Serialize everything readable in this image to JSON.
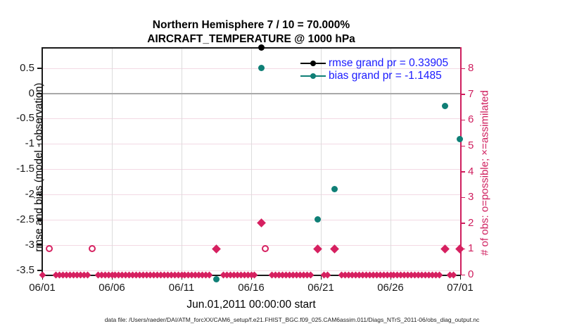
{
  "colors": {
    "count_axis": "#cf1e5e",
    "marker_pink": "#d62060",
    "bias_teal": "#0f7f76",
    "rmse_black": "#000000",
    "legend_text_blue": "#1a1aff",
    "grid_pink": "#f3d9e4",
    "grid_gray": "#dcdcdc",
    "zero_line_gray": "#a9a9a9"
  },
  "chart_data": {
    "type": "scatter",
    "title_line1": "Northern Hemisphere 7 / 10 = 70.000%",
    "title_line2": "AIRCRAFT_TEMPERATURE @ 1000 hPa",
    "x_axis": {
      "label": "Jun.01,2011 00:00:00 start",
      "ticks": [
        {
          "day": 0,
          "label": "06/01"
        },
        {
          "day": 5,
          "label": "06/06"
        },
        {
          "day": 10,
          "label": "06/11"
        },
        {
          "day": 15,
          "label": "06/16"
        },
        {
          "day": 20,
          "label": "06/21"
        },
        {
          "day": 25,
          "label": "06/26"
        },
        {
          "day": 30,
          "label": "07/01"
        }
      ],
      "xlim_days": [
        0,
        30
      ]
    },
    "y_left": {
      "label": "rmse and bias (model - observation)",
      "ticks": [
        {
          "v": 0.5,
          "label": "0.5"
        },
        {
          "v": 0,
          "label": "0"
        },
        {
          "v": -0.5,
          "label": "-0.5"
        },
        {
          "v": -1,
          "label": "-1"
        },
        {
          "v": -1.5,
          "label": "-1.5"
        },
        {
          "v": -2,
          "label": "-2"
        },
        {
          "v": -2.5,
          "label": "-2.5"
        },
        {
          "v": -3,
          "label": "-3"
        },
        {
          "v": -3.5,
          "label": "-3.5"
        }
      ],
      "ylim": [
        -3.59,
        0.9
      ]
    },
    "y_right": {
      "label": "# of obs: o=possible; ×=assimilated",
      "ticks": [
        {
          "c": 0,
          "label": "0"
        },
        {
          "c": 1,
          "label": "1"
        },
        {
          "c": 2,
          "label": "2"
        },
        {
          "c": 3,
          "label": "3"
        },
        {
          "c": 4,
          "label": "4"
        },
        {
          "c": 5,
          "label": "5"
        },
        {
          "c": 6,
          "label": "6"
        },
        {
          "c": 7,
          "label": "7"
        },
        {
          "c": 8,
          "label": "8"
        }
      ],
      "ylim": [
        0,
        8.8
      ]
    },
    "legend": {
      "items": [
        {
          "label": "rmse grand pr = 0.33905",
          "series": "rmse",
          "color": "#000000"
        },
        {
          "label": "bias grand pr = -1.1485",
          "series": "bias",
          "color": "#0f7f76"
        }
      ]
    },
    "series": {
      "rmse_points": [
        {
          "day": 15.75,
          "value": 0.9,
          "note": "clipped at top of axis"
        }
      ],
      "bias_points": [
        {
          "day": 12.5,
          "value": -3.68,
          "note": "below bottom axis"
        },
        {
          "day": 15.75,
          "value": 0.5
        },
        {
          "day": 19.75,
          "value": -2.5
        },
        {
          "day": 21.0,
          "value": -1.9
        },
        {
          "day": 28.9,
          "value": -0.25
        },
        {
          "day": 29.95,
          "value": -0.9
        }
      ],
      "possible_only_counts": [
        {
          "day": 0.5,
          "count": 1
        },
        {
          "day": 3.6,
          "count": 1
        },
        {
          "day": 16.0,
          "count": 1
        }
      ],
      "assimilated_counts": [
        {
          "day": 12.5,
          "count": 1
        },
        {
          "day": 15.75,
          "count": 2
        },
        {
          "day": 19.75,
          "count": 1
        },
        {
          "day": 21.0,
          "count": 1
        },
        {
          "day": 28.9,
          "count": 1
        },
        {
          "day": 29.95,
          "count": 1
        }
      ],
      "zero_count_row": {
        "start_day": 0,
        "end_day": 30,
        "step_days": 0.25,
        "count": 0,
        "skip_days": [
          0.5,
          3.6,
          12.5,
          15.75,
          16.0,
          19.75,
          21.0,
          28.9,
          29.95
        ]
      }
    }
  },
  "footer": {
    "text": "data file: /Users/raeder/DAI/ATM_forcXX/CAM6_setup/f.e21.FHIST_BGC.f09_025.CAM6assim.011/Diags_NTrS_2011-06/obs_diag_output.nc"
  }
}
